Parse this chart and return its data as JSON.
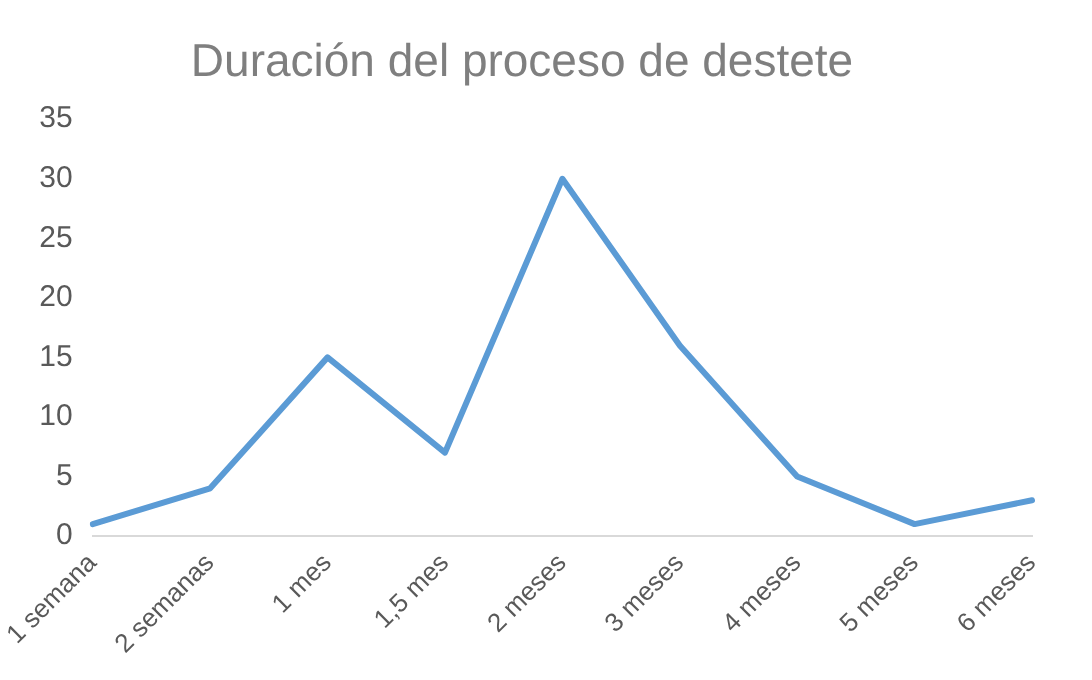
{
  "chart_data": {
    "type": "line",
    "title": "Duración del proceso de destete",
    "categories": [
      "1 semana",
      "2 semanas",
      "1 mes",
      "1,5 mes",
      "2 meses",
      "3 meses",
      "4 meses",
      "5 meses",
      "6 meses"
    ],
    "series": [
      {
        "color": "#5b9bd5",
        "values": [
          1,
          4,
          15,
          7,
          30,
          16,
          5,
          1,
          3
        ]
      }
    ],
    "ylim": [
      0,
      35
    ],
    "yticks": [
      0,
      5,
      10,
      15,
      20,
      25,
      30,
      35
    ],
    "grid": false,
    "legend": false,
    "marker": "none",
    "line_style": "solid"
  }
}
